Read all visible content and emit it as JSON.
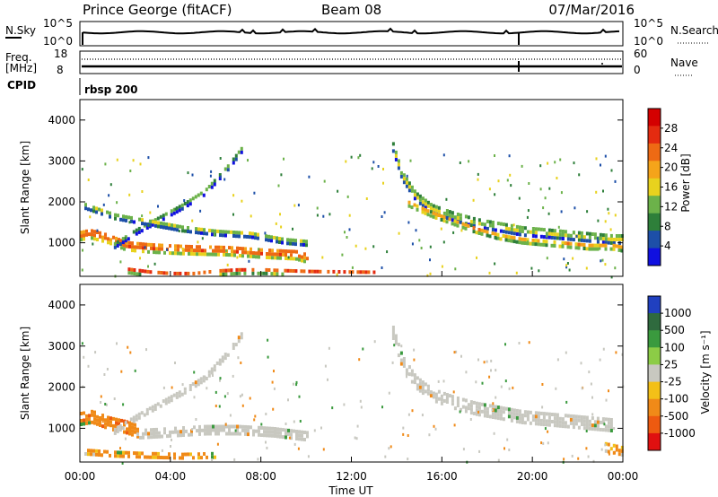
{
  "header": {
    "station": "Prince George (fitACF)",
    "beam": "Beam 08",
    "date": "07/Mar/2016"
  },
  "top_panels": {
    "nsky_label": "N.Sky",
    "nsky_ticks": [
      "10^5",
      "10^0"
    ],
    "nsearch_label": "N.Search",
    "nsearch_ticks": [
      "10^5",
      "10^0"
    ],
    "freq_label_1": "Freq.",
    "freq_label_2": "[MHz]",
    "freq_ticks": [
      "18",
      "8"
    ],
    "nave_label": "Nave",
    "nave_ticks": [
      "60",
      "0"
    ],
    "cpid_label": "CPID",
    "cpid_value": "rbsp 200"
  },
  "colors": {
    "power_scale": [
      "#1010e0",
      "#1d4fa8",
      "#2e7f3a",
      "#6cb24a",
      "#e8d21e",
      "#f5a41a",
      "#ee6a14",
      "#e42b10",
      "#d40000"
    ],
    "velocity_scale": [
      "#2040c0",
      "#2f6a3e",
      "#3a9a3e",
      "#8ccc46",
      "#c8c8c0",
      "#f3c018",
      "#f08a18",
      "#ee5a10",
      "#e01010"
    ]
  },
  "chart_data": [
    {
      "type": "heatmap",
      "name": "power",
      "xlabel": "",
      "ylabel": "Slant Range [km]",
      "x_range_hours": [
        0,
        24
      ],
      "ylim_km": [
        180,
        4500
      ],
      "yticks": [
        "1000",
        "2000",
        "3000",
        "4000"
      ],
      "colorbar_label": "Power [dB]",
      "colorbar_ticks": [
        "4",
        "8",
        "12",
        "16",
        "20",
        "24",
        "28"
      ],
      "colorbar_range": [
        0,
        32
      ],
      "bands": [
        {
          "t": [
            0.0,
            0.4,
            1.2,
            2.0,
            3.0,
            4.0,
            5.0,
            6.5,
            8.0,
            9.5,
            10.0
          ],
          "range": [
            1250,
            1300,
            1180,
            1000,
            950,
            920,
            900,
            880,
            820,
            780,
            700
          ],
          "width": 260,
          "value": 30
        },
        {
          "t": [
            1.5,
            2.5,
            3.5,
            4.5,
            5.5,
            6.5,
            7.2
          ],
          "range": [
            1000,
            1350,
            1650,
            1950,
            2300,
            2900,
            3400
          ],
          "width": 140,
          "value": 16
        },
        {
          "t": [
            0.2,
            1.5,
            3.0,
            4.5,
            6.0,
            7.5,
            9.0,
            10.0
          ],
          "range": [
            1950,
            1700,
            1550,
            1400,
            1300,
            1250,
            1100,
            1050
          ],
          "width": 130,
          "value": 20
        },
        {
          "t": [
            2.0,
            3.0,
            4.0,
            5.0,
            6.0,
            7.0,
            8.0,
            9.0,
            10.0,
            11.5,
            13.0
          ],
          "range": [
            400,
            330,
            290,
            290,
            350,
            380,
            380,
            360,
            340,
            330,
            320
          ],
          "width": 170,
          "value": 28
        },
        {
          "t": [
            13.8,
            14.2,
            14.8,
            15.5,
            16.5,
            17.5,
            18.5,
            19.5,
            20.5,
            21.5,
            22.5,
            23.5,
            24.0
          ],
          "range": [
            3400,
            2700,
            2200,
            1900,
            1700,
            1550,
            1450,
            1350,
            1300,
            1250,
            1200,
            1150,
            1150
          ],
          "width": 230,
          "value": 20
        },
        {
          "t": [
            14.5,
            15.5,
            16.5,
            17.5,
            18.5,
            19.5,
            20.5,
            21.5,
            22.5,
            23.5,
            24.0
          ],
          "range": [
            2000,
            1750,
            1550,
            1350,
            1200,
            1100,
            1050,
            1000,
            950,
            950,
            900
          ],
          "width": 120,
          "value": 28
        }
      ]
    },
    {
      "type": "heatmap",
      "name": "velocity",
      "xlabel": "Time UT",
      "ylabel": "Slant Range [km]",
      "x_range_hours": [
        0,
        24
      ],
      "xticks": [
        "00:00",
        "04:00",
        "08:00",
        "12:00",
        "16:00",
        "20:00",
        "00:00"
      ],
      "ylim_km": [
        180,
        4500
      ],
      "yticks": [
        "1000",
        "2000",
        "3000",
        "4000"
      ],
      "colorbar_label": "Velocity [m s⁻¹]",
      "colorbar_ticks": [
        "1000",
        "500",
        "100",
        "25",
        "-25",
        "-100",
        "-500",
        "-1000"
      ],
      "bands": [
        {
          "t": [
            0.0,
            0.5,
            1.2,
            2.0,
            2.5
          ],
          "range": [
            1300,
            1350,
            1200,
            1100,
            1000
          ],
          "width": 320,
          "value": -400
        },
        {
          "t": [
            2.5,
            4.0,
            5.5,
            7.0,
            8.5,
            10.0
          ],
          "range": [
            900,
            950,
            1000,
            1000,
            950,
            850
          ],
          "width": 180,
          "value": 0
        },
        {
          "t": [
            1.5,
            2.5,
            3.5,
            4.5,
            5.5,
            6.5,
            7.2
          ],
          "range": [
            1000,
            1350,
            1650,
            1950,
            2300,
            2900,
            3400
          ],
          "width": 150,
          "value": 0
        },
        {
          "t": [
            0.2,
            1.5,
            3.0,
            4.5,
            6.0
          ],
          "range": [
            500,
            450,
            420,
            400,
            420
          ],
          "width": 160,
          "value": -150
        },
        {
          "t": [
            13.8,
            14.2,
            14.8,
            15.5,
            16.5,
            17.5,
            18.5,
            19.5,
            20.5,
            21.5,
            22.5,
            23.5
          ],
          "range": [
            3400,
            2700,
            2200,
            1900,
            1700,
            1550,
            1450,
            1350,
            1300,
            1250,
            1200,
            1150
          ],
          "width": 330,
          "value": 0
        },
        {
          "t": [
            23.2,
            23.6,
            24.0
          ],
          "range": [
            600,
            550,
            500
          ],
          "width": 220,
          "value": -150
        }
      ]
    }
  ]
}
